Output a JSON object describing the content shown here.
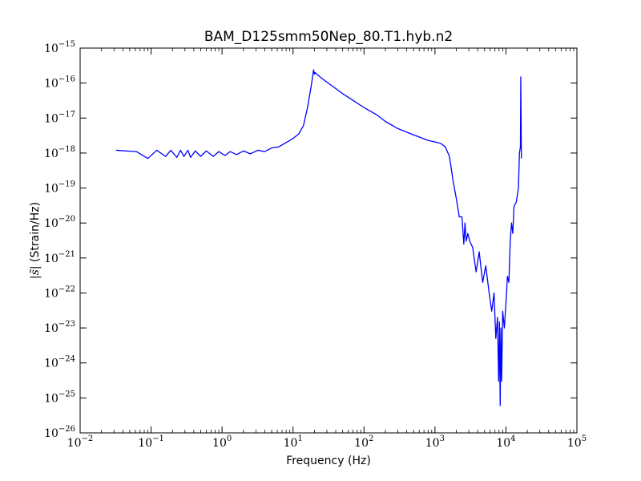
{
  "chart_data": {
    "type": "line",
    "title": "BAM_D125smm50Nep_80.T1.hyb.n2",
    "xlabel": "Frequency (Hz)",
    "ylabel_math": "|s̃|",
    "ylabel_text": " (Strain/Hz)",
    "x_scale": "log",
    "y_scale": "log",
    "xlim": [
      0.01,
      100000
    ],
    "ylim": [
      1e-26,
      1e-15
    ],
    "x_ticks": [
      {
        "base": "10",
        "exp": "−2"
      },
      {
        "base": "10",
        "exp": "−1"
      },
      {
        "base": "10",
        "exp": "0"
      },
      {
        "base": "10",
        "exp": "1"
      },
      {
        "base": "10",
        "exp": "2"
      },
      {
        "base": "10",
        "exp": "3"
      },
      {
        "base": "10",
        "exp": "4"
      },
      {
        "base": "10",
        "exp": "5"
      }
    ],
    "y_ticks": [
      {
        "base": "10",
        "exp": "−26"
      },
      {
        "base": "10",
        "exp": "−25"
      },
      {
        "base": "10",
        "exp": "−24"
      },
      {
        "base": "10",
        "exp": "−23"
      },
      {
        "base": "10",
        "exp": "−22"
      },
      {
        "base": "10",
        "exp": "−21"
      },
      {
        "base": "10",
        "exp": "−20"
      },
      {
        "base": "10",
        "exp": "−19"
      },
      {
        "base": "10",
        "exp": "−18"
      },
      {
        "base": "10",
        "exp": "−17"
      },
      {
        "base": "10",
        "exp": "−16"
      },
      {
        "base": "10",
        "exp": "−15"
      }
    ],
    "grid": false,
    "legend": "none",
    "series": [
      {
        "color": "#0000ff",
        "x": [
          0.032,
          0.062,
          0.09,
          0.12,
          0.16,
          0.19,
          0.23,
          0.26,
          0.29,
          0.33,
          0.36,
          0.42,
          0.5,
          0.6,
          0.75,
          0.9,
          1.1,
          1.3,
          1.6,
          2.0,
          2.5,
          3.2,
          4.0,
          5.0,
          6.3,
          8.0,
          10.0,
          12.0,
          14.0,
          16.0,
          18.0,
          19.5,
          20.0,
          20.5,
          21.0,
          25.0,
          35.0,
          50.0,
          70.0,
          100.0,
          150.0,
          200.0,
          300.0,
          500.0,
          800.0,
          1200.0,
          1400.0,
          1600.0,
          1800.0,
          2000.0,
          2200.0,
          2400.0,
          2550.0,
          2650.0,
          2750.0,
          2900.0,
          3100.0,
          3400.0,
          3800.0,
          4200.0,
          4700.0,
          5200.0,
          5800.0,
          6300.0,
          6800.0,
          7200.0,
          7600.0,
          7900.0,
          8100.0,
          8300.0,
          8500.0,
          8700.0,
          9000.0,
          9500.0,
          10000.0,
          10500.0,
          11000.0,
          11500.0,
          12000.0,
          12500.0,
          13000.0,
          14000.0,
          15000.0,
          15500.0,
          16000.0,
          16200.0,
          16500.0
        ],
        "y": [
          1.2e-18,
          1.1e-18,
          7e-19,
          1.2e-18,
          8e-19,
          1.2e-18,
          7.5e-19,
          1.2e-18,
          8e-19,
          1.2e-18,
          7.5e-19,
          1.15e-18,
          8e-19,
          1.15e-18,
          8e-19,
          1.1e-18,
          8.5e-19,
          1.1e-18,
          9e-19,
          1.15e-18,
          9.5e-19,
          1.2e-18,
          1.1e-18,
          1.4e-18,
          1.5e-18,
          2e-18,
          2.6e-18,
          3.5e-18,
          6e-18,
          2e-17,
          8e-17,
          2.4e-16,
          1.8e-16,
          2e-16,
          1.9e-16,
          1.4e-16,
          8.5e-17,
          5e-17,
          3.2e-17,
          2e-17,
          1.25e-17,
          8e-18,
          5e-18,
          3.3e-18,
          2.3e-18,
          1.9e-18,
          1.5e-18,
          8e-19,
          1.6e-19,
          5e-20,
          1.5e-20,
          1.5e-20,
          2.5e-21,
          1e-20,
          3e-21,
          5e-21,
          3e-21,
          2e-21,
          4e-22,
          1.5e-21,
          2e-22,
          6e-22,
          1e-22,
          3e-23,
          1e-22,
          5e-24,
          2e-23,
          3e-25,
          1.5e-23,
          6e-26,
          1e-23,
          3e-25,
          3e-23,
          1e-23,
          5e-23,
          3e-22,
          2e-22,
          3e-21,
          1e-20,
          5e-21,
          3e-20,
          4e-20,
          1e-19,
          1e-18,
          1.5e-18,
          1.5e-16,
          7e-19
        ]
      }
    ]
  }
}
